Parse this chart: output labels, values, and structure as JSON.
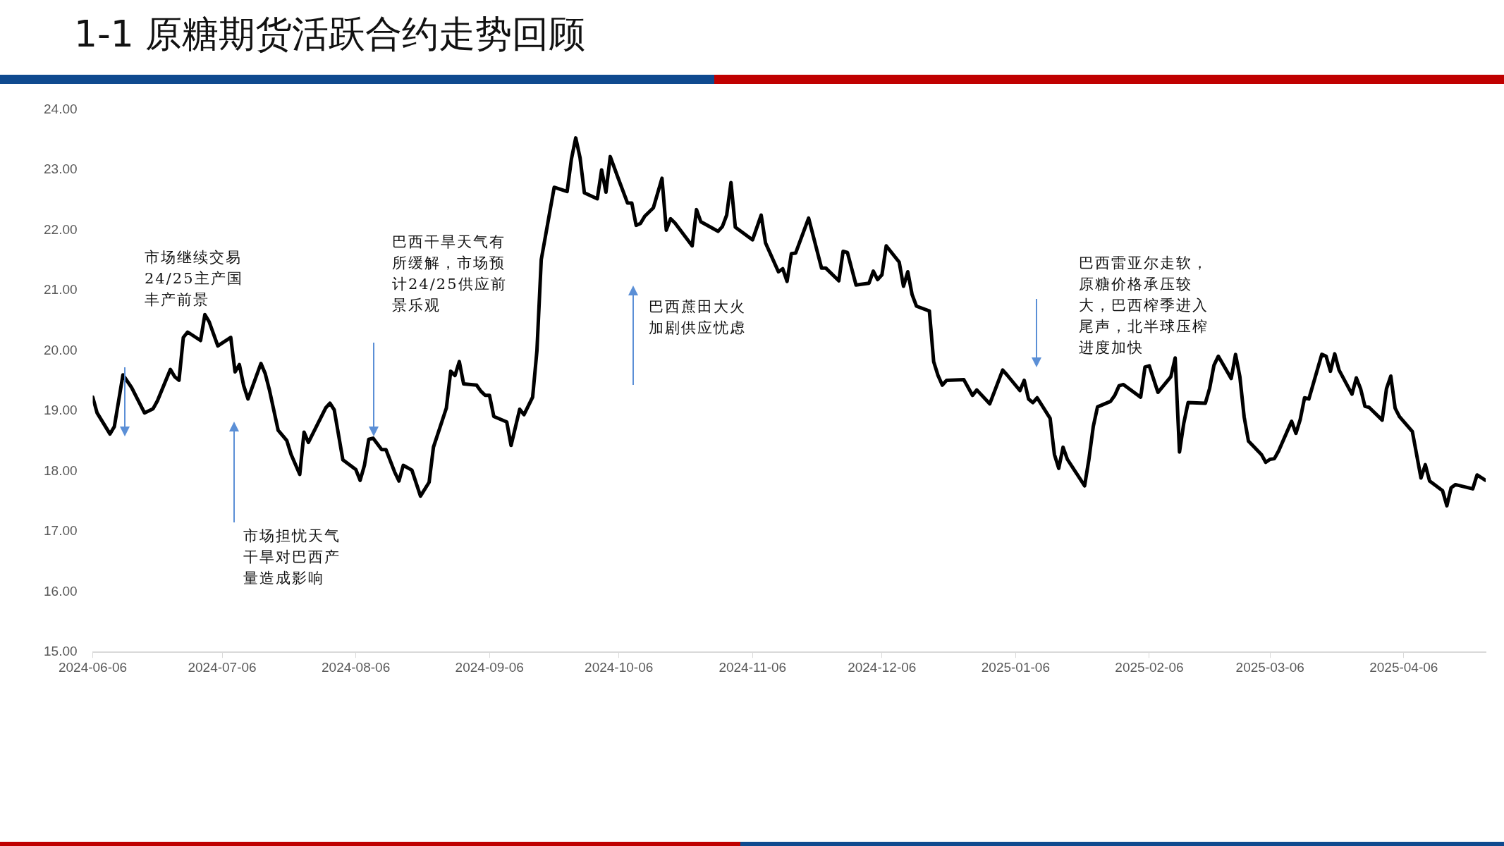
{
  "chart_data": {
    "type": "line",
    "title": "1-1 原糖期货活跃合约走势回顾",
    "x": [
      "2024-06-06",
      "2024-06-07",
      "2024-06-10",
      "2024-06-11",
      "2024-06-13",
      "2024-06-15",
      "2024-06-18",
      "2024-06-20",
      "2024-06-21",
      "2024-06-24",
      "2024-06-25",
      "2024-06-26",
      "2024-06-27",
      "2024-06-28",
      "2024-07-01",
      "2024-07-02",
      "2024-07-03",
      "2024-07-05",
      "2024-07-08",
      "2024-07-09",
      "2024-07-10",
      "2024-07-11",
      "2024-07-12",
      "2024-07-15",
      "2024-07-16",
      "2024-07-17",
      "2024-07-19",
      "2024-07-21",
      "2024-07-22",
      "2024-07-24",
      "2024-07-25",
      "2024-07-26",
      "2024-07-30",
      "2024-07-31",
      "2024-08-01",
      "2024-08-03",
      "2024-08-06",
      "2024-08-07",
      "2024-08-08",
      "2024-08-09",
      "2024-08-10",
      "2024-08-12",
      "2024-08-13",
      "2024-08-15",
      "2024-08-16",
      "2024-08-17",
      "2024-08-19",
      "2024-08-21",
      "2024-08-23",
      "2024-08-24",
      "2024-08-27",
      "2024-08-28",
      "2024-08-29",
      "2024-08-30",
      "2024-08-31",
      "2024-09-03",
      "2024-09-04",
      "2024-09-05",
      "2024-09-06",
      "2024-09-07",
      "2024-09-10",
      "2024-09-11",
      "2024-09-13",
      "2024-09-14",
      "2024-09-16",
      "2024-09-17",
      "2024-09-18",
      "2024-09-21",
      "2024-09-24",
      "2024-09-25",
      "2024-09-26",
      "2024-09-27",
      "2024-09-28",
      "2024-10-01",
      "2024-10-02",
      "2024-10-03",
      "2024-10-04",
      "2024-10-06",
      "2024-10-08",
      "2024-10-09",
      "2024-10-10",
      "2024-10-11",
      "2024-10-12",
      "2024-10-14",
      "2024-10-16",
      "2024-10-17",
      "2024-10-18",
      "2024-10-19",
      "2024-10-23",
      "2024-10-24",
      "2024-10-25",
      "2024-10-29",
      "2024-10-30",
      "2024-10-31",
      "2024-11-01",
      "2024-11-02",
      "2024-11-06",
      "2024-11-08",
      "2024-11-09",
      "2024-11-12",
      "2024-11-13",
      "2024-11-14",
      "2024-11-15",
      "2024-11-16",
      "2024-11-19",
      "2024-11-22",
      "2024-11-23",
      "2024-11-26",
      "2024-11-27",
      "2024-11-28",
      "2024-11-30",
      "2024-12-03",
      "2024-12-04",
      "2024-12-05",
      "2024-12-06",
      "2024-12-07",
      "2024-12-10",
      "2024-12-11",
      "2024-12-12",
      "2024-12-13",
      "2024-12-14",
      "2024-12-17",
      "2024-12-18",
      "2024-12-19",
      "2024-12-20",
      "2024-12-21",
      "2024-12-25",
      "2024-12-27",
      "2024-12-28",
      "2024-12-31",
      "2025-01-03",
      "2025-01-04",
      "2025-01-07",
      "2025-01-08",
      "2025-01-09",
      "2025-01-10",
      "2025-01-11",
      "2025-01-14",
      "2025-01-15",
      "2025-01-16",
      "2025-01-17",
      "2025-01-18",
      "2025-01-22",
      "2025-01-23",
      "2025-01-24",
      "2025-01-25",
      "2025-01-28",
      "2025-01-29",
      "2025-01-30",
      "2025-01-31",
      "2025-02-04",
      "2025-02-05",
      "2025-02-06",
      "2025-02-08",
      "2025-02-11",
      "2025-02-12",
      "2025-02-13",
      "2025-02-14",
      "2025-02-15",
      "2025-02-19",
      "2025-02-20",
      "2025-02-21",
      "2025-02-22",
      "2025-02-25",
      "2025-02-26",
      "2025-02-27",
      "2025-02-28",
      "2025-03-01",
      "2025-03-04",
      "2025-03-05",
      "2025-03-06",
      "2025-03-07",
      "2025-03-08",
      "2025-03-11",
      "2025-03-12",
      "2025-03-13",
      "2025-03-14",
      "2025-03-15",
      "2025-03-18",
      "2025-03-19",
      "2025-03-20",
      "2025-03-21",
      "2025-03-22",
      "2025-03-25",
      "2025-03-26",
      "2025-03-27",
      "2025-03-28",
      "2025-03-29",
      "2025-04-01",
      "2025-04-02",
      "2025-04-03",
      "2025-04-04",
      "2025-04-05",
      "2025-04-08",
      "2025-04-10",
      "2025-04-11",
      "2025-04-12",
      "2025-04-15",
      "2025-04-16",
      "2025-04-17",
      "2025-04-18",
      "2025-04-22",
      "2025-04-23",
      "2025-04-25"
    ],
    "series": [
      {
        "color": "#000000",
        "values": [
          19.23,
          18.97,
          18.62,
          18.74,
          19.6,
          19.39,
          18.97,
          19.04,
          19.17,
          19.69,
          19.57,
          19.51,
          20.22,
          20.31,
          20.17,
          20.6,
          20.48,
          20.08,
          20.22,
          19.65,
          19.77,
          19.42,
          19.2,
          19.79,
          19.62,
          19.34,
          18.68,
          18.51,
          18.28,
          17.95,
          18.65,
          18.48,
          19.05,
          19.13,
          19.02,
          18.19,
          18.03,
          17.85,
          18.1,
          18.53,
          18.55,
          18.36,
          18.36,
          17.99,
          17.84,
          18.1,
          18.02,
          17.59,
          17.82,
          18.4,
          19.05,
          19.66,
          19.59,
          19.82,
          19.45,
          19.43,
          19.33,
          19.26,
          19.26,
          18.91,
          18.82,
          18.43,
          19.03,
          18.94,
          19.23,
          20.0,
          21.51,
          22.71,
          22.64,
          23.18,
          23.53,
          23.2,
          22.62,
          22.52,
          23.0,
          22.63,
          23.22,
          22.83,
          22.45,
          22.45,
          22.08,
          22.11,
          22.23,
          22.37,
          22.86,
          22.0,
          22.19,
          22.12,
          21.74,
          22.34,
          22.14,
          21.98,
          22.06,
          22.25,
          22.79,
          22.05,
          21.84,
          22.25,
          21.79,
          21.31,
          21.36,
          21.15,
          21.61,
          21.62,
          22.2,
          21.37,
          21.37,
          21.16,
          21.65,
          21.63,
          21.09,
          21.12,
          21.32,
          21.18,
          21.26,
          21.74,
          21.47,
          21.07,
          21.31,
          20.93,
          20.74,
          20.66,
          19.82,
          19.59,
          19.43,
          19.51,
          19.52,
          19.26,
          19.35,
          19.12,
          19.68,
          19.6,
          19.34,
          19.51,
          19.2,
          19.14,
          19.22,
          18.88,
          18.28,
          18.05,
          18.4,
          18.2,
          17.76,
          18.2,
          18.74,
          19.07,
          19.16,
          19.26,
          19.42,
          19.44,
          19.23,
          19.73,
          19.75,
          19.31,
          19.57,
          19.88,
          18.32,
          18.8,
          19.14,
          19.13,
          19.38,
          19.76,
          19.91,
          19.54,
          19.94,
          19.57,
          18.9,
          18.5,
          18.28,
          18.15,
          18.2,
          18.21,
          18.34,
          18.83,
          18.63,
          18.86,
          19.22,
          19.2,
          19.94,
          19.91,
          19.66,
          19.95,
          19.68,
          19.28,
          19.55,
          19.37,
          19.08,
          19.06,
          18.85,
          19.37,
          19.58,
          19.05,
          18.91,
          18.66,
          17.89,
          18.11,
          17.84,
          17.68,
          17.43,
          17.73,
          17.78,
          17.71,
          17.94,
          17.85
        ]
      }
    ],
    "xlim": [
      "2024-06-06",
      "2025-04-25"
    ],
    "xticks": [
      "2024-06-06",
      "2024-07-06",
      "2024-08-06",
      "2024-09-06",
      "2024-10-06",
      "2024-11-06",
      "2024-12-06",
      "2025-01-06",
      "2025-02-06",
      "2025-03-06",
      "2025-04-06"
    ],
    "ylim": [
      15,
      24
    ],
    "yticks": [
      {
        "value": 15,
        "label": "15.00"
      },
      {
        "value": 16,
        "label": "16.00"
      },
      {
        "value": 17,
        "label": "17.00"
      },
      {
        "value": 18,
        "label": "18.00"
      },
      {
        "value": 19,
        "label": "19.00"
      },
      {
        "value": 20,
        "label": "20.00"
      },
      {
        "value": 21,
        "label": "21.00"
      },
      {
        "value": 22,
        "label": "22.00"
      },
      {
        "value": 23,
        "label": "23.00"
      },
      {
        "value": 24,
        "label": "24.00"
      }
    ],
    "grid": false,
    "legend": false,
    "marker": "none",
    "line_style": "solid",
    "annotations": [
      "市场继续交易24/25主产国丰产前景",
      "市场担忧天气干旱对巴西产量造成影响",
      "巴西干旱天气有所缓解，市场预计24/25供应前景乐观",
      "巴西蔗田大火加剧供应忧虑",
      "巴西雷亚尔走软，原糖价格承压较大，巴西榨季进入尾声，北半球压榨进度加快"
    ]
  }
}
